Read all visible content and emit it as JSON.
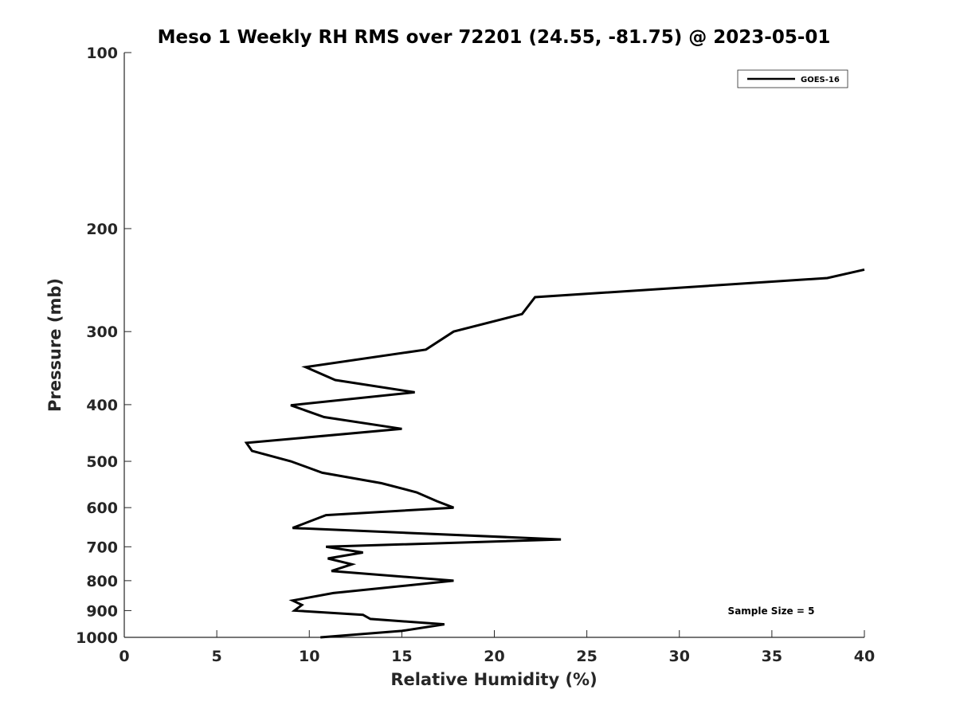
{
  "chart_data": {
    "type": "line",
    "title": "Meso 1 Weekly RH RMS over 72201 (24.55, -81.75) @ 2023-05-01",
    "xlabel": "Relative Humidity (%)",
    "ylabel": "Pressure (mb)",
    "xlim": [
      0,
      40
    ],
    "ylim": [
      100,
      1000
    ],
    "y_scale": "log",
    "y_reversed": true,
    "xticks": [
      "0",
      "5",
      "10",
      "15",
      "20",
      "25",
      "30",
      "35",
      "40"
    ],
    "yticks": [
      "100",
      "200",
      "300",
      "400",
      "500",
      "600",
      "700",
      "800",
      "900",
      "1000"
    ],
    "grid": false,
    "legend_position": "top-right",
    "annotation": "Sample Size = 5",
    "series": [
      {
        "name": "GOES-16",
        "color": "#000000",
        "points": [
          [
            40.0,
            235
          ],
          [
            38.0,
            243
          ],
          [
            22.2,
            262
          ],
          [
            21.5,
            280
          ],
          [
            17.8,
            300
          ],
          [
            16.3,
            322
          ],
          [
            9.8,
            345
          ],
          [
            11.4,
            363
          ],
          [
            15.7,
            381
          ],
          [
            9.0,
            401
          ],
          [
            10.8,
            420
          ],
          [
            15.0,
            440
          ],
          [
            6.6,
            465
          ],
          [
            6.9,
            480
          ],
          [
            9.0,
            500
          ],
          [
            10.7,
            523
          ],
          [
            13.9,
            545
          ],
          [
            15.8,
            565
          ],
          [
            16.9,
            585
          ],
          [
            17.8,
            600
          ],
          [
            10.9,
            618
          ],
          [
            9.1,
            650
          ],
          [
            23.6,
            680
          ],
          [
            10.9,
            700
          ],
          [
            12.9,
            716
          ],
          [
            11.0,
            733
          ],
          [
            12.3,
            750
          ],
          [
            11.2,
            770
          ],
          [
            17.8,
            800
          ],
          [
            11.3,
            840
          ],
          [
            9.1,
            865
          ],
          [
            9.6,
            880
          ],
          [
            9.2,
            900
          ],
          [
            12.9,
            915
          ],
          [
            13.3,
            930
          ],
          [
            17.3,
            950
          ],
          [
            15.0,
            975
          ],
          [
            10.6,
            1000
          ]
        ]
      }
    ]
  }
}
